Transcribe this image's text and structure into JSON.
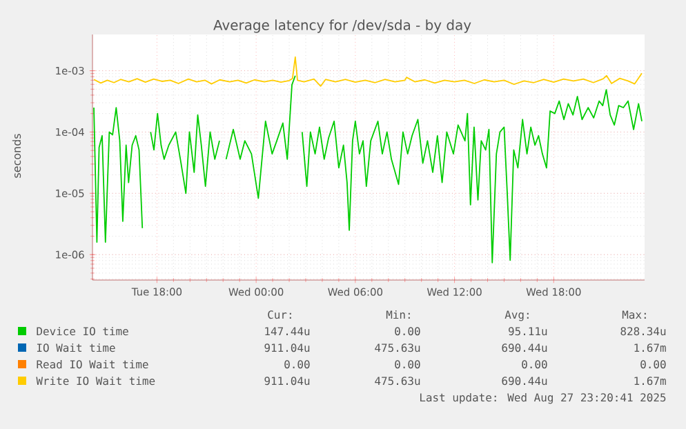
{
  "chart_data": {
    "type": "line",
    "title": "Average latency for /dev/sda - by day",
    "ylabel": "seconds",
    "log": "y",
    "grid": true,
    "legend": "bottom",
    "marker": "none",
    "xlim": [
      "2025-08-26T14:06",
      "2025-08-27T23:30"
    ],
    "ylim": [
      3.85e-07,
      0.0039
    ],
    "xticks": [
      {
        "value": "2025-08-26T18:00",
        "label": "Tue 18:00"
      },
      {
        "value": "2025-08-27T00:00",
        "label": "Wed 00:00"
      },
      {
        "value": "2025-08-27T06:00",
        "label": "Wed 06:00"
      },
      {
        "value": "2025-08-27T12:00",
        "label": "Wed 12:00"
      },
      {
        "value": "2025-08-27T18:00",
        "label": "Wed 18:00"
      }
    ],
    "yticks": [
      {
        "value": 1e-06,
        "label": "1e-06"
      },
      {
        "value": 1e-05,
        "label": "1e-05"
      },
      {
        "value": 0.0001,
        "label": "1e-04"
      },
      {
        "value": 0.001,
        "label": "1e-03"
      }
    ],
    "series": [
      {
        "name": "Device IO time",
        "color": "#00cc00",
        "x": [
          "2025-08-26T14:11",
          "2025-08-26T14:22",
          "2025-08-26T14:30",
          "2025-08-26T14:41",
          "2025-08-26T14:53",
          "2025-08-26T15:07",
          "2025-08-26T15:19",
          "2025-08-26T15:32",
          "2025-08-26T15:45",
          "2025-08-26T15:56",
          "2025-08-26T16:08",
          "2025-08-26T16:17",
          "2025-08-26T16:30",
          "2025-08-26T16:43",
          "2025-08-26T16:55",
          "2025-08-26T17:07",
          "2025-08-26T17:22",
          "2025-08-26T17:37",
          "2025-08-26T17:49",
          "2025-08-26T18:02",
          "2025-08-26T18:15",
          "2025-08-26T18:26",
          "2025-08-26T18:43",
          "2025-08-26T19:08",
          "2025-08-26T19:25",
          "2025-08-26T19:45",
          "2025-08-26T19:58",
          "2025-08-26T20:15",
          "2025-08-26T20:28",
          "2025-08-26T20:41",
          "2025-08-26T20:56",
          "2025-08-26T21:13",
          "2025-08-26T21:30",
          "2025-08-26T21:47",
          "2025-08-26T21:55",
          "2025-08-26T22:11",
          "2025-08-26T22:37",
          "2025-08-26T23:02",
          "2025-08-26T23:19",
          "2025-08-26T23:43",
          "2025-08-27T00:08",
          "2025-08-27T00:34",
          "2025-08-27T00:58",
          "2025-08-27T01:15",
          "2025-08-27T01:37",
          "2025-08-27T01:53",
          "2025-08-27T02:10",
          "2025-08-27T02:22",
          "2025-08-27T02:34",
          "2025-08-27T02:47",
          "2025-08-27T03:04",
          "2025-08-27T03:17",
          "2025-08-27T03:34",
          "2025-08-27T03:50",
          "2025-08-27T04:07",
          "2025-08-27T04:23",
          "2025-08-27T04:43",
          "2025-08-27T05:00",
          "2025-08-27T05:17",
          "2025-08-27T05:30",
          "2025-08-27T05:38",
          "2025-08-27T05:50",
          "2025-08-27T06:00",
          "2025-08-27T06:15",
          "2025-08-27T06:28",
          "2025-08-27T06:40",
          "2025-08-27T06:56",
          "2025-08-27T07:22",
          "2025-08-27T07:38",
          "2025-08-27T07:55",
          "2025-08-27T08:11",
          "2025-08-27T08:37",
          "2025-08-27T08:53",
          "2025-08-27T09:10",
          "2025-08-27T09:26",
          "2025-08-27T09:47",
          "2025-08-27T10:05",
          "2025-08-27T10:22",
          "2025-08-27T10:41",
          "2025-08-27T10:58",
          "2025-08-27T11:15",
          "2025-08-27T11:32",
          "2025-08-27T11:56",
          "2025-08-27T12:13",
          "2025-08-27T12:38",
          "2025-08-27T12:47",
          "2025-08-27T12:58",
          "2025-08-27T13:11",
          "2025-08-27T13:25",
          "2025-08-27T13:37",
          "2025-08-27T13:53",
          "2025-08-27T14:05",
          "2025-08-27T14:17",
          "2025-08-27T14:32",
          "2025-08-27T14:45",
          "2025-08-27T15:00",
          "2025-08-27T15:11",
          "2025-08-27T15:22",
          "2025-08-27T15:35",
          "2025-08-27T15:50",
          "2025-08-27T16:07",
          "2025-08-27T16:23",
          "2025-08-27T16:37",
          "2025-08-27T16:52",
          "2025-08-27T17:05",
          "2025-08-27T17:19",
          "2025-08-27T17:34",
          "2025-08-27T17:47",
          "2025-08-27T18:04",
          "2025-08-27T18:20",
          "2025-08-27T18:37",
          "2025-08-27T18:53",
          "2025-08-27T19:10",
          "2025-08-27T19:26",
          "2025-08-27T19:43",
          "2025-08-27T20:05",
          "2025-08-27T20:25",
          "2025-08-27T20:45",
          "2025-08-27T20:58",
          "2025-08-27T21:11",
          "2025-08-27T21:25",
          "2025-08-27T21:40",
          "2025-08-27T21:56",
          "2025-08-27T22:13",
          "2025-08-27T22:30",
          "2025-08-27T22:50",
          "2025-08-27T23:08",
          "2025-08-27T23:20"
        ],
        "values": [
          0.00025,
          1.6e-06,
          5.6e-05,
          8.7e-05,
          1.6e-06,
          0.0001,
          9e-05,
          0.00025,
          7.2e-05,
          3.5e-06,
          6.1e-05,
          1.5e-05,
          6.1e-05,
          8.7e-05,
          5.1e-05,
          2.7e-06,
          null,
          0.0001,
          5.1e-05,
          0.0002,
          6.1e-05,
          3.6e-05,
          6.1e-05,
          0.0001,
          3.6e-05,
          1e-05,
          0.0001,
          2.2e-05,
          0.00019,
          6.1e-05,
          1.3e-05,
          0.0001,
          3.6e-05,
          7.2e-05,
          null,
          3.6e-05,
          0.00011,
          3.6e-05,
          7.2e-05,
          4.4e-05,
          8.3e-06,
          0.00015,
          4.4e-05,
          7.2e-05,
          0.00014,
          3.6e-05,
          0.00059,
          0.00083,
          null,
          0.0001,
          1.3e-05,
          0.0001,
          4.4e-05,
          0.00012,
          3.6e-05,
          8e-05,
          0.00015,
          2.6e-05,
          6.1e-05,
          1.5e-05,
          2.5e-06,
          7.2e-05,
          0.00015,
          4.4e-05,
          7.2e-05,
          1.3e-05,
          7.2e-05,
          0.00015,
          4.4e-05,
          0.0001,
          3.6e-05,
          1.4e-05,
          0.0001,
          4.4e-05,
          8.7e-05,
          0.00016,
          3.1e-05,
          7.2e-05,
          2.2e-05,
          8.7e-05,
          1.5e-05,
          0.0001,
          4.4e-05,
          0.00013,
          7.2e-05,
          0.0002,
          6.5e-06,
          0.00012,
          7.8e-06,
          7.2e-05,
          5.1e-05,
          0.00011,
          7.4e-07,
          4.4e-05,
          0.0001,
          0.00012,
          1.1e-05,
          8.1e-07,
          5.1e-05,
          2.6e-05,
          0.00016,
          4.4e-05,
          0.00012,
          6.1e-05,
          8.7e-05,
          4.4e-05,
          2.6e-05,
          0.00022,
          0.0002,
          0.00032,
          0.00016,
          0.00029,
          0.00019,
          0.00038,
          0.00016,
          0.00025,
          0.00017,
          0.00032,
          0.00027,
          0.00049,
          0.00019,
          0.00013,
          0.00027,
          0.00025,
          0.00032,
          0.00011,
          0.00029,
          0.00015
        ]
      },
      {
        "name": "IO Wait time",
        "color": "#0066b3"
      },
      {
        "name": "Read IO Wait time",
        "color": "#ff8000"
      },
      {
        "name": "Write IO Wait time",
        "color": "#ffcc00",
        "x": [
          "2025-08-26T14:11",
          "2025-08-26T14:36",
          "2025-08-26T15:00",
          "2025-08-26T15:24",
          "2025-08-26T15:48",
          "2025-08-26T16:18",
          "2025-08-26T16:48",
          "2025-08-26T17:18",
          "2025-08-26T17:48",
          "2025-08-26T18:18",
          "2025-08-26T18:48",
          "2025-08-26T19:18",
          "2025-08-26T19:54",
          "2025-08-26T20:24",
          "2025-08-26T20:54",
          "2025-08-26T21:18",
          "2025-08-26T21:48",
          "2025-08-26T22:24",
          "2025-08-26T22:54",
          "2025-08-26T23:24",
          "2025-08-26T23:54",
          "2025-08-27T00:30",
          "2025-08-27T01:00",
          "2025-08-27T01:30",
          "2025-08-27T02:00",
          "2025-08-27T02:12",
          "2025-08-27T02:22",
          "2025-08-27T02:30",
          "2025-08-27T02:54",
          "2025-08-27T03:30",
          "2025-08-27T03:54",
          "2025-08-27T04:12",
          "2025-08-27T04:48",
          "2025-08-27T05:24",
          "2025-08-27T06:00",
          "2025-08-27T06:36",
          "2025-08-27T07:12",
          "2025-08-27T07:48",
          "2025-08-27T08:24",
          "2025-08-27T09:00",
          "2025-08-27T09:06",
          "2025-08-27T09:36",
          "2025-08-27T10:12",
          "2025-08-27T10:48",
          "2025-08-27T11:24",
          "2025-08-27T12:00",
          "2025-08-27T12:36",
          "2025-08-27T13:12",
          "2025-08-27T13:48",
          "2025-08-27T14:24",
          "2025-08-27T15:00",
          "2025-08-27T15:36",
          "2025-08-27T16:12",
          "2025-08-27T16:48",
          "2025-08-27T17:24",
          "2025-08-27T18:00",
          "2025-08-27T18:36",
          "2025-08-27T19:12",
          "2025-08-27T19:48",
          "2025-08-27T20:24",
          "2025-08-27T21:00",
          "2025-08-27T21:12",
          "2025-08-27T21:30",
          "2025-08-27T22:00",
          "2025-08-27T22:30",
          "2025-08-27T22:54",
          "2025-08-27T23:20"
        ],
        "values": [
          0.00072,
          0.00063,
          0.0007,
          0.00064,
          0.00072,
          0.00066,
          0.00074,
          0.00065,
          0.00073,
          0.00067,
          0.0007,
          0.00062,
          0.00073,
          0.00066,
          0.0007,
          0.00061,
          0.00071,
          0.00066,
          0.0007,
          0.00063,
          0.00071,
          0.00066,
          0.0007,
          0.00065,
          0.00069,
          0.00075,
          0.00167,
          0.0007,
          0.00066,
          0.00073,
          0.00056,
          0.00072,
          0.00066,
          0.00072,
          0.00065,
          0.0007,
          0.00064,
          0.00072,
          0.00066,
          0.0007,
          0.00078,
          0.00066,
          0.00071,
          0.00063,
          0.0007,
          0.00066,
          0.0007,
          0.00062,
          0.00071,
          0.00066,
          0.0007,
          0.0006,
          0.00068,
          0.00064,
          0.00072,
          0.00065,
          0.00073,
          0.00068,
          0.00073,
          0.00064,
          0.00074,
          0.00083,
          0.00062,
          0.00075,
          0.00068,
          0.00061,
          0.00091
        ]
      }
    ],
    "annotations": [
      "Cur:",
      "Min:",
      "Avg:",
      "Max:",
      "147.44u",
      "0.00",
      "95.11u",
      "828.34u",
      "911.04u",
      "475.63u",
      "690.44u",
      "1.67m",
      "0.00",
      "0.00",
      "0.00",
      "0.00",
      "911.04u",
      "475.63u",
      "690.44u",
      "1.67m",
      "Last update: Wed Aug 27 23:20:41 2025"
    ]
  }
}
